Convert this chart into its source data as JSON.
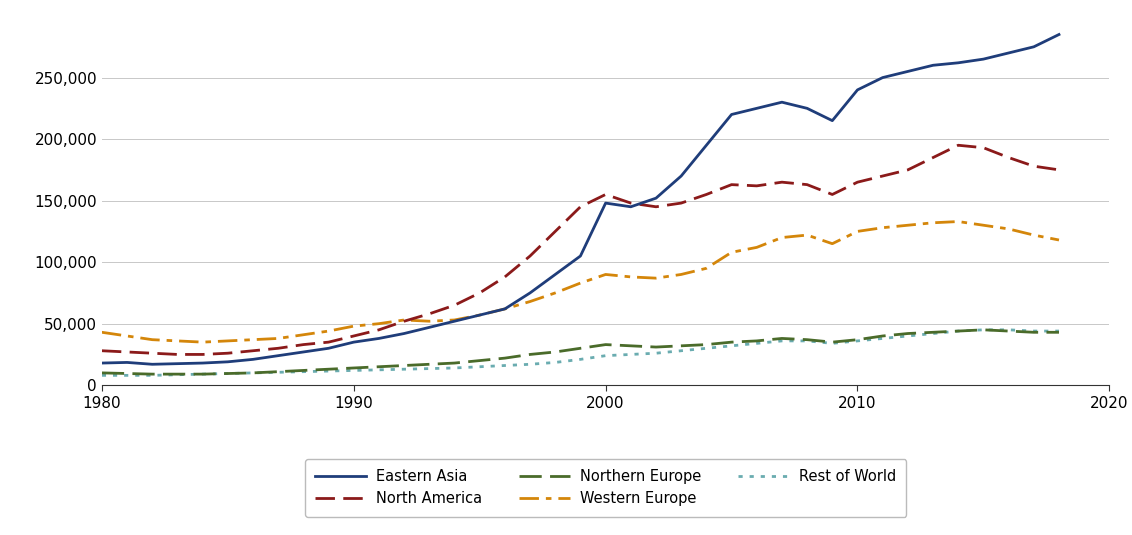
{
  "years": [
    1980,
    1981,
    1982,
    1983,
    1984,
    1985,
    1986,
    1987,
    1988,
    1989,
    1990,
    1991,
    1992,
    1993,
    1994,
    1995,
    1996,
    1997,
    1998,
    1999,
    2000,
    2001,
    2002,
    2003,
    2004,
    2005,
    2006,
    2007,
    2008,
    2009,
    2010,
    2011,
    2012,
    2013,
    2014,
    2015,
    2016,
    2017,
    2018
  ],
  "eastern_asia": [
    18000,
    18500,
    17000,
    17500,
    18000,
    19000,
    21000,
    24000,
    27000,
    30000,
    35000,
    38000,
    42000,
    47000,
    52000,
    57000,
    62000,
    75000,
    90000,
    105000,
    148000,
    145000,
    152000,
    170000,
    195000,
    220000,
    225000,
    230000,
    225000,
    215000,
    240000,
    250000,
    255000,
    260000,
    262000,
    265000,
    270000,
    275000,
    285000
  ],
  "north_america": [
    28000,
    27000,
    26000,
    25000,
    25000,
    26000,
    28000,
    30000,
    33000,
    35000,
    40000,
    45000,
    52000,
    58000,
    65000,
    75000,
    88000,
    105000,
    125000,
    145000,
    155000,
    148000,
    145000,
    148000,
    155000,
    163000,
    162000,
    165000,
    163000,
    155000,
    165000,
    170000,
    175000,
    185000,
    195000,
    193000,
    185000,
    178000,
    175000
  ],
  "western_europe": [
    43000,
    40000,
    37000,
    36000,
    35000,
    36000,
    37000,
    38000,
    41000,
    44000,
    48000,
    50000,
    53000,
    52000,
    53000,
    57000,
    62000,
    68000,
    75000,
    83000,
    90000,
    88000,
    87000,
    90000,
    95000,
    108000,
    112000,
    120000,
    122000,
    115000,
    125000,
    128000,
    130000,
    132000,
    133000,
    130000,
    127000,
    122000,
    118000
  ],
  "northern_europe": [
    10000,
    9500,
    9000,
    9000,
    9000,
    9500,
    10000,
    11000,
    12000,
    13000,
    14000,
    15000,
    16000,
    17000,
    18000,
    20000,
    22000,
    25000,
    27000,
    30000,
    33000,
    32000,
    31000,
    32000,
    33000,
    35000,
    36000,
    38000,
    37000,
    35000,
    37000,
    40000,
    42000,
    43000,
    44000,
    45000,
    44000,
    43000,
    43000
  ],
  "rest_of_world": [
    8000,
    8000,
    8000,
    8500,
    9000,
    9500,
    10000,
    10500,
    11000,
    11500,
    12000,
    12500,
    13000,
    13500,
    14000,
    15000,
    16000,
    17000,
    18500,
    21000,
    24000,
    25000,
    26000,
    28000,
    30000,
    32000,
    34000,
    36000,
    36000,
    34000,
    36000,
    38000,
    40000,
    42000,
    44000,
    45000,
    45000,
    44000,
    44000
  ],
  "colors": {
    "eastern_asia": "#1f3d7a",
    "north_america": "#8b1a1a",
    "western_europe": "#d4860a",
    "northern_europe": "#4a6b2a",
    "rest_of_world": "#6aacb0"
  },
  "linewidths": {
    "eastern_asia": 2.0,
    "north_america": 2.0,
    "western_europe": 2.0,
    "northern_europe": 2.0,
    "rest_of_world": 2.0
  },
  "labels": {
    "eastern_asia": "Eastern Asia",
    "north_america": "North America",
    "western_europe": "Western Europe",
    "northern_europe": "Northern Europe",
    "rest_of_world": "Rest of World"
  },
  "ylim": [
    0,
    300000
  ],
  "yticks": [
    0,
    50000,
    100000,
    150000,
    200000,
    250000
  ],
  "xlim": [
    1980,
    2020
  ],
  "xticks": [
    1980,
    1990,
    2000,
    2010,
    2020
  ],
  "background_color": "#ffffff",
  "grid_color": "#c8c8c8"
}
